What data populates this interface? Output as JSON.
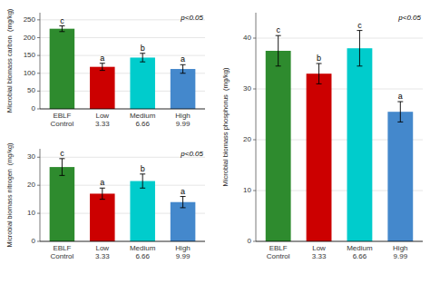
{
  "chart_data": [
    {
      "type": "bar",
      "categories": [
        "EBLF\nControl",
        "Low\n3.33",
        "Medium\n6.66",
        "High\n9.99"
      ],
      "values": [
        225,
        118,
        144,
        112
      ],
      "errors": [
        8,
        10,
        12,
        12
      ],
      "letters": [
        "c",
        "a",
        "b",
        "a"
      ],
      "colors": [
        "#2e8b2e",
        "#cc0000",
        "#00cccc",
        "#4488cc"
      ],
      "ylabel": "Microbial biomass carbon  (mg/kg)",
      "ylim": [
        0,
        270
      ],
      "yticks": [
        0,
        50,
        100,
        150,
        200,
        250
      ],
      "annotation": "p<0.05",
      "grid": true
    },
    {
      "type": "bar",
      "categories": [
        "EBLF\nControl",
        "Low\n3.33",
        "Medium\n6.66",
        "High\n9.99"
      ],
      "values": [
        26.5,
        17,
        21.5,
        14
      ],
      "errors": [
        3,
        2,
        2.5,
        2
      ],
      "letters": [
        "c",
        "a",
        "b",
        "a"
      ],
      "colors": [
        "#2e8b2e",
        "#cc0000",
        "#00cccc",
        "#4488cc"
      ],
      "ylabel": "Microbial biomass nitrogen  (mg/kg)",
      "ylim": [
        0,
        33
      ],
      "yticks": [
        0,
        10,
        20,
        30
      ],
      "annotation": "p<0.05",
      "grid": true
    },
    {
      "type": "bar",
      "categories": [
        "EBLF\nControl",
        "Low\n3.33",
        "Medium\n6.66",
        "High\n9.99"
      ],
      "values": [
        37.5,
        33,
        38,
        25.5
      ],
      "errors": [
        3,
        2,
        3.5,
        2
      ],
      "letters": [
        "c",
        "b",
        "c",
        "a"
      ],
      "colors": [
        "#2e8b2e",
        "#cc0000",
        "#00cccc",
        "#4488cc"
      ],
      "ylabel": "Microbial biomass phosphorus  (mg/kg)",
      "ylim": [
        0,
        45
      ],
      "yticks": [
        0,
        10,
        20,
        30,
        40
      ],
      "annotation": "p<0.05",
      "grid": true
    }
  ]
}
